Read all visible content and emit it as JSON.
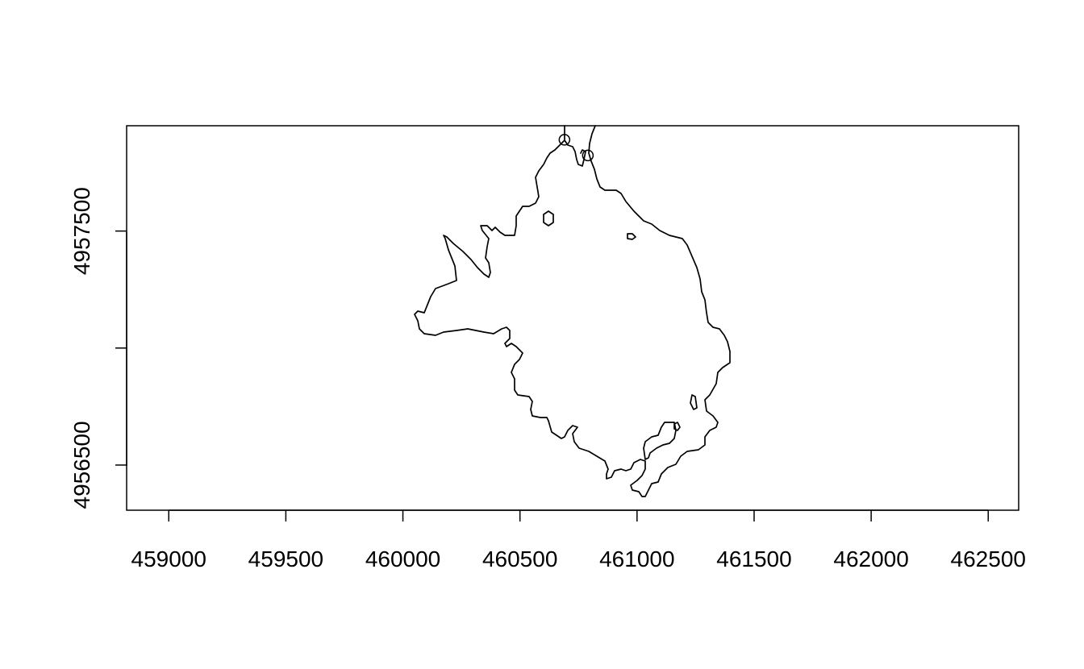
{
  "chart_data": {
    "type": "map",
    "title": "",
    "xlabel": "",
    "ylabel": "",
    "x_axis": {
      "ticks": [
        459000,
        459500,
        460000,
        460500,
        461000,
        461500,
        462000,
        462500
      ],
      "tick_labels": [
        "459000",
        "459500",
        "460000",
        "460500",
        "461000",
        "461500",
        "462000",
        "462500"
      ],
      "range": [
        458820,
        462630
      ]
    },
    "y_axis": {
      "ticks": [
        4956500,
        4957000,
        4957500
      ],
      "tick_labels": [
        "4956500",
        "",
        "4957500"
      ],
      "range": [
        4956307,
        4957950
      ]
    },
    "grid": false,
    "points": [
      {
        "x": 460690,
        "y": 4957890
      },
      {
        "x": 460790,
        "y": 4957823
      }
    ]
  }
}
